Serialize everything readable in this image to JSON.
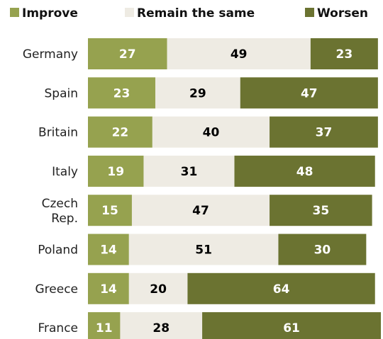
{
  "chart_data": {
    "type": "bar",
    "orientation": "horizontal",
    "stacked": true,
    "title": "",
    "xlabel": "",
    "ylabel": "",
    "xlim": [
      0,
      100
    ],
    "grid": false,
    "legend_position": "top",
    "categories": [
      [
        "Germany"
      ],
      [
        "Spain"
      ],
      [
        "Britain"
      ],
      [
        "Italy"
      ],
      [
        "Czech",
        "Rep."
      ],
      [
        "Poland"
      ],
      [
        "Greece"
      ],
      [
        "France"
      ]
    ],
    "series": [
      {
        "name": "Improve",
        "color": "#96a24f",
        "label_color": "#ffffff",
        "values": [
          27,
          23,
          22,
          19,
          15,
          14,
          14,
          11
        ]
      },
      {
        "name": "Remain the same",
        "color": "#eeebe3",
        "label_color": "#000000",
        "values": [
          49,
          29,
          40,
          31,
          47,
          51,
          20,
          28
        ]
      },
      {
        "name": "Worsen",
        "color": "#6b7331",
        "label_color": "#ffffff",
        "values": [
          23,
          47,
          37,
          48,
          35,
          30,
          64,
          61
        ]
      }
    ]
  }
}
